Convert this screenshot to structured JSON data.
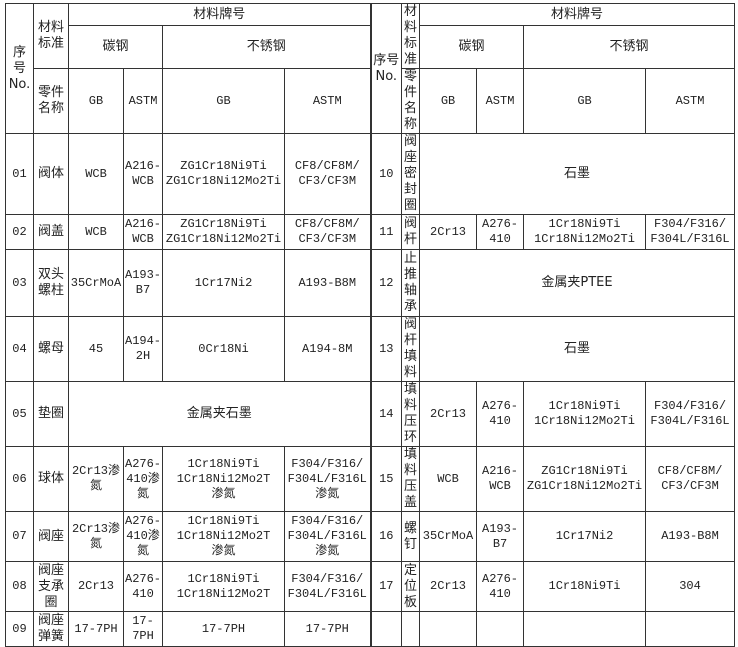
{
  "header": {
    "no_label": "序号\nNo.",
    "standard_label": "材料标准",
    "part_name_label": "零件名称",
    "grade_label": "材料牌号",
    "carbon_steel": "碳钢",
    "stainless_steel": "不锈钢",
    "gb": "GB",
    "astm": "ASTM"
  },
  "left_rows": [
    {
      "no": "01",
      "name": "阀体",
      "cells": [
        "WCB",
        "A216-\nWCB",
        "ZG1Cr18Ni9Ti\nZG1Cr18Ni12Mo2Ti",
        "CF8/CF8M/\nCF3/CF3M"
      ]
    },
    {
      "no": "02",
      "name": "阀盖",
      "cells": [
        "WCB",
        "A216-\nWCB",
        "ZG1Cr18Ni9Ti\nZG1Cr18Ni12Mo2Ti",
        "CF8/CF8M/\nCF3/CF3M"
      ]
    },
    {
      "no": "03",
      "name": "双头\n螺柱",
      "cells": [
        "35CrMoA",
        "A193-\nB7",
        "1Cr17Ni2",
        "A193-B8M"
      ]
    },
    {
      "no": "04",
      "name": "螺母",
      "cells": [
        "45",
        "A194-\n2H",
        "0Cr18Ni",
        "A194-8M"
      ]
    },
    {
      "no": "05",
      "name": "垫圈",
      "merged": "金属夹石墨"
    },
    {
      "no": "06",
      "name": "球体",
      "cells": [
        "2Cr13渗\n氮",
        "A276-\n410渗\n氮",
        "1Cr18Ni9Ti\n1Cr18Ni12Mo2T\n渗氮",
        "F304/F316/\nF304L/F316L\n渗氮"
      ]
    },
    {
      "no": "07",
      "name": "阀座",
      "cells": [
        "2Cr13渗\n氮",
        "A276-\n410渗\n氮",
        "1Cr18Ni9Ti\n1Cr18Ni12Mo2T\n渗氮",
        "F304/F316/\nF304L/F316L\n渗氮"
      ]
    },
    {
      "no": "08",
      "name": "阀座\n支承\n圈",
      "cells": [
        "2Cr13",
        "A276-\n410",
        "1Cr18Ni9Ti\n1Cr18Ni12Mo2T",
        "F304/F316/\nF304L/F316L"
      ]
    },
    {
      "no": "09",
      "name": "阀座\n弹簧",
      "cells": [
        "17-7PH",
        "17-\n7PH",
        "17-7PH",
        "17-7PH"
      ]
    }
  ],
  "right_rows": [
    {
      "no": "10",
      "name": "阀座密封圈",
      "merged": "石墨"
    },
    {
      "no": "11",
      "name": "阀杆",
      "cells": [
        "2Cr13",
        "A276-\n410",
        "1Cr18Ni9Ti\n1Cr18Ni12Mo2Ti",
        "F304/F316/\nF304L/F316L"
      ]
    },
    {
      "no": "12",
      "name": "止推轴承",
      "merged": "金属夹PTEE"
    },
    {
      "no": "13",
      "name": "阀杆填料",
      "merged": "石墨"
    },
    {
      "no": "14",
      "name": "填料压环",
      "cells": [
        "2Cr13",
        "A276-\n410",
        "1Cr18Ni9Ti\n1Cr18Ni12Mo2Ti",
        "F304/F316/\nF304L/F316L"
      ]
    },
    {
      "no": "15",
      "name": "填料压盖",
      "cells": [
        "WCB",
        "A216-\nWCB",
        "ZG1Cr18Ni9Ti\nZG1Cr18Ni12Mo2Ti",
        "CF8/CF8M/\nCF3/CF3M"
      ]
    },
    {
      "no": "16",
      "name": "螺钉",
      "cells": [
        "35CrMoA",
        "A193-\nB7",
        "1Cr17Ni2",
        "A193-B8M"
      ]
    },
    {
      "no": "17",
      "name": "定位板",
      "cells": [
        "2Cr13",
        "A276-\n410",
        "1Cr18Ni9Ti",
        "304"
      ]
    },
    {
      "no": "",
      "name": "",
      "cells": [
        "",
        "",
        "",
        ""
      ]
    }
  ]
}
